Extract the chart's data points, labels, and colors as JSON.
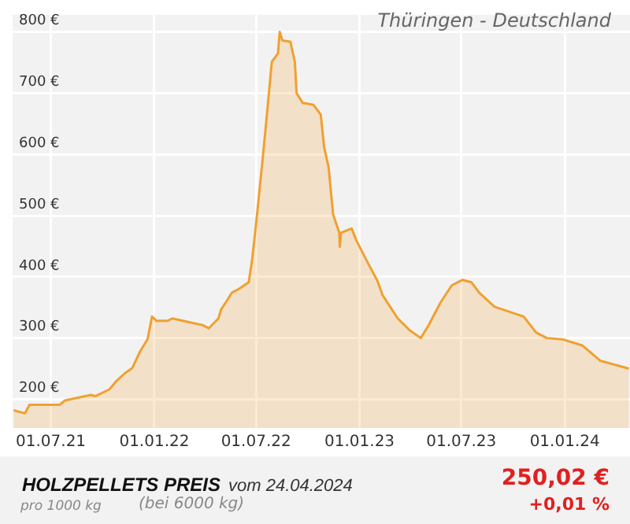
{
  "chart_data": {
    "type": "area",
    "title": "HOLZPELLETS PREIS",
    "subtitle": "Thüringen - Deutschland",
    "annotations": [
      "vom 24.04.2024",
      "pro 1000 kg",
      "(bei 6000 kg)",
      "250,02 €",
      "+0,01 %"
    ],
    "x": [
      "2021-04-26",
      "2021-05-16",
      "2021-05-24",
      "2021-07-17",
      "2021-07-26",
      "2021-09-10",
      "2021-09-18",
      "2021-10-13",
      "2021-10-26",
      "2021-11-09",
      "2021-11-23",
      "2021-12-06",
      "2021-12-20",
      "2021-12-28",
      "2022-01-05",
      "2022-01-24",
      "2022-02-02",
      "2022-02-21",
      "2022-03-28",
      "2022-04-08",
      "2022-04-25",
      "2022-04-30",
      "2022-05-08",
      "2022-05-19",
      "2022-06-02",
      "2022-06-18",
      "2022-06-24",
      "2022-07-02",
      "2022-07-13",
      "2022-07-21",
      "2022-07-29",
      "2022-08-09",
      "2022-08-12",
      "2022-08-17",
      "2022-08-31",
      "2022-09-08",
      "2022-09-11",
      "2022-09-22",
      "2022-10-11",
      "2022-10-24",
      "2022-10-30",
      "2022-11-07",
      "2022-11-15",
      "2022-11-26",
      "2022-11-27",
      "2022-11-29",
      "2022-12-18",
      "2022-12-26",
      "2023-01-14",
      "2023-02-02",
      "2023-02-11",
      "2023-03-10",
      "2023-04-01",
      "2023-04-20",
      "2023-05-04",
      "2023-05-25",
      "2023-06-14",
      "2023-07-03",
      "2023-07-19",
      "2023-08-02",
      "2023-08-29",
      "2023-10-20",
      "2023-11-11",
      "2023-11-30",
      "2023-12-27",
      "2024-02-01",
      "2024-03-04",
      "2024-04-24"
    ],
    "values": [
      182,
      177,
      191,
      191,
      198,
      207,
      205,
      216,
      230,
      242,
      251,
      277,
      298,
      335,
      328,
      328,
      332,
      328,
      321,
      316,
      332,
      347,
      358,
      374,
      381,
      391,
      428,
      495,
      595,
      672,
      751,
      765,
      800,
      786,
      784,
      751,
      700,
      684,
      681,
      665,
      612,
      579,
      502,
      472,
      449,
      472,
      479,
      460,
      426,
      393,
      370,
      332,
      312,
      300,
      321,
      358,
      386,
      395,
      391,
      374,
      351,
      335,
      309,
      300,
      298,
      288,
      263,
      250
    ],
    "color": "#f0a030",
    "xlim": [
      "2021-04-24",
      "2024-04-26"
    ],
    "ylim": [
      153,
      828
    ],
    "xticks": [
      {
        "value": "2021-07-01",
        "label": "01.07.21"
      },
      {
        "value": "2022-01-01",
        "label": "01.01.22"
      },
      {
        "value": "2022-07-01",
        "label": "01.07.22"
      },
      {
        "value": "2023-01-01",
        "label": "01.01.23"
      },
      {
        "value": "2023-07-01",
        "label": "01.07.23"
      },
      {
        "value": "2024-01-01",
        "label": "01.01.24"
      }
    ],
    "yticks": [
      {
        "value": 200,
        "label": "200 €"
      },
      {
        "value": 300,
        "label": "300 €"
      },
      {
        "value": 400,
        "label": "400 €"
      },
      {
        "value": 500,
        "label": "500 €"
      },
      {
        "value": 600,
        "label": "600 €"
      },
      {
        "value": 700,
        "label": "700 €"
      },
      {
        "value": 800,
        "label": "800 €"
      }
    ],
    "grid": true,
    "marker": "none"
  }
}
